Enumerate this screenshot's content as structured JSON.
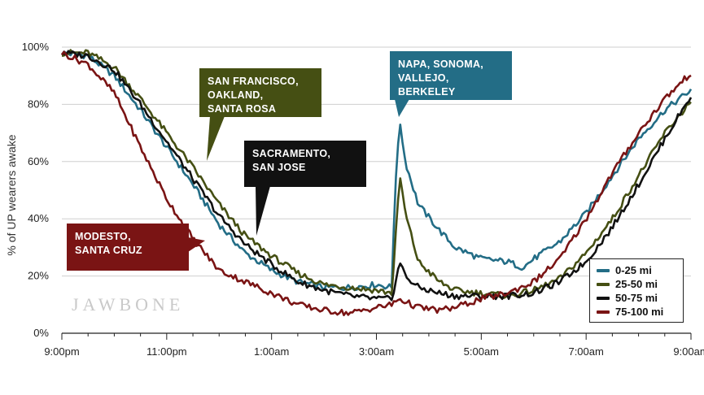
{
  "chart_data": {
    "type": "line",
    "ylabel": "% of UP wearers awake",
    "xlabel": "",
    "ylim": [
      0,
      100
    ],
    "y_ticks": [
      0,
      20,
      40,
      60,
      80,
      100
    ],
    "y_tick_labels": [
      "0%",
      "20%",
      "40%",
      "60%",
      "80%",
      "100%"
    ],
    "x_range_hours": [
      0,
      12
    ],
    "x_ticks": [
      0,
      2,
      4,
      6,
      8,
      10,
      12
    ],
    "x_tick_labels": [
      "9:00pm",
      "11:00pm",
      "1:00am",
      "3:00am",
      "5:00am",
      "7:00am",
      "9:00am"
    ],
    "grid": "horizontal",
    "legend_position": "bottom-right",
    "series": [
      {
        "name": "0-25 mi",
        "color": "#236d86",
        "points": [
          [
            0,
            98
          ],
          [
            0.5,
            97
          ],
          [
            1,
            90
          ],
          [
            1.5,
            78
          ],
          [
            2,
            65
          ],
          [
            2.5,
            52
          ],
          [
            3,
            38
          ],
          [
            3.5,
            28
          ],
          [
            4,
            22
          ],
          [
            4.5,
            18
          ],
          [
            5,
            16
          ],
          [
            5.5,
            16
          ],
          [
            6,
            17
          ],
          [
            6.3,
            16
          ],
          [
            6.35,
            50
          ],
          [
            6.45,
            74
          ],
          [
            6.55,
            60
          ],
          [
            6.8,
            45
          ],
          [
            7.2,
            36
          ],
          [
            7.5,
            30
          ],
          [
            8,
            26
          ],
          [
            8.5,
            25
          ],
          [
            8.8,
            23
          ],
          [
            9,
            26
          ],
          [
            9.5,
            32
          ],
          [
            10,
            42
          ],
          [
            10.5,
            55
          ],
          [
            11,
            68
          ],
          [
            11.5,
            78
          ],
          [
            12,
            85
          ]
        ]
      },
      {
        "name": "25-50 mi",
        "color": "#454f13",
        "points": [
          [
            0,
            98
          ],
          [
            0.5,
            98
          ],
          [
            1,
            93
          ],
          [
            1.5,
            82
          ],
          [
            2,
            70
          ],
          [
            2.5,
            58
          ],
          [
            3,
            45
          ],
          [
            3.5,
            34
          ],
          [
            4,
            27
          ],
          [
            4.5,
            21
          ],
          [
            5,
            17
          ],
          [
            5.5,
            16
          ],
          [
            6,
            15
          ],
          [
            6.3,
            14
          ],
          [
            6.35,
            30
          ],
          [
            6.45,
            55
          ],
          [
            6.55,
            42
          ],
          [
            6.8,
            25
          ],
          [
            7.2,
            18
          ],
          [
            7.5,
            15
          ],
          [
            8,
            14
          ],
          [
            8.5,
            13
          ],
          [
            9,
            15
          ],
          [
            9.5,
            19
          ],
          [
            10,
            28
          ],
          [
            10.5,
            40
          ],
          [
            11,
            55
          ],
          [
            11.5,
            70
          ],
          [
            12,
            81
          ]
        ]
      },
      {
        "name": "50-75 mi",
        "color": "#111111",
        "points": [
          [
            0,
            98
          ],
          [
            0.5,
            97
          ],
          [
            1,
            92
          ],
          [
            1.5,
            80
          ],
          [
            2,
            67
          ],
          [
            2.5,
            54
          ],
          [
            3,
            41
          ],
          [
            3.5,
            31
          ],
          [
            4,
            24
          ],
          [
            4.5,
            18
          ],
          [
            5,
            15
          ],
          [
            5.5,
            13
          ],
          [
            6,
            12
          ],
          [
            6.3,
            12
          ],
          [
            6.35,
            17
          ],
          [
            6.45,
            25
          ],
          [
            6.55,
            20
          ],
          [
            6.8,
            16
          ],
          [
            7.2,
            14
          ],
          [
            7.5,
            13
          ],
          [
            8,
            13
          ],
          [
            8.5,
            13
          ],
          [
            9,
            14
          ],
          [
            9.5,
            18
          ],
          [
            10,
            25
          ],
          [
            10.5,
            37
          ],
          [
            11,
            52
          ],
          [
            11.5,
            68
          ],
          [
            12,
            83
          ]
        ]
      },
      {
        "name": "75-100 mi",
        "color": "#7a1414",
        "points": [
          [
            0,
            98
          ],
          [
            0.5,
            94
          ],
          [
            1,
            84
          ],
          [
            1.5,
            65
          ],
          [
            2,
            47
          ],
          [
            2.5,
            33
          ],
          [
            3,
            22
          ],
          [
            3.5,
            18
          ],
          [
            4,
            14
          ],
          [
            4.5,
            10
          ],
          [
            5,
            8
          ],
          [
            5.5,
            7
          ],
          [
            6,
            9
          ],
          [
            6.3,
            10
          ],
          [
            6.35,
            11
          ],
          [
            6.45,
            12
          ],
          [
            6.55,
            11
          ],
          [
            6.8,
            9
          ],
          [
            7.2,
            8
          ],
          [
            7.5,
            9
          ],
          [
            8,
            12
          ],
          [
            8.5,
            14
          ],
          [
            9,
            18
          ],
          [
            9.5,
            26
          ],
          [
            10,
            40
          ],
          [
            10.5,
            56
          ],
          [
            11,
            70
          ],
          [
            11.5,
            82
          ],
          [
            12,
            91
          ]
        ]
      }
    ],
    "annotations": [
      {
        "lines": [
          "SAN FRANCISCO,",
          "OAKLAND,",
          "SANTA ROSA"
        ],
        "color": "#454f13"
      },
      {
        "lines": [
          "SACRAMENTO,",
          "SAN JOSE"
        ],
        "color": "#111111"
      },
      {
        "lines": [
          "NAPA, SONOMA,",
          "VALLEJO,",
          "BERKELEY"
        ],
        "color": "#236d86"
      },
      {
        "lines": [
          "MODESTO,",
          "SANTA CRUZ"
        ],
        "color": "#7a1414"
      }
    ]
  },
  "watermark": "JAWBONE"
}
